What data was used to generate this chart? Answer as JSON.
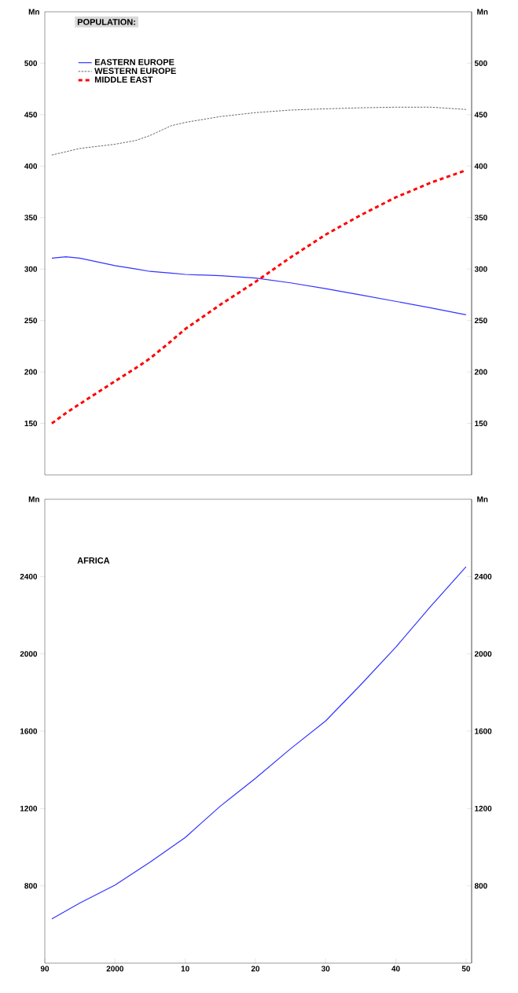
{
  "chart_data": [
    {
      "type": "line",
      "title": "POPULATION:",
      "ylabel": "Mn",
      "y2label": "Mn",
      "x": [
        1991,
        1993,
        1995,
        2000,
        2003,
        2005,
        2008,
        2010,
        2015,
        2020,
        2025,
        2030,
        2035,
        2040,
        2045,
        2050
      ],
      "series": [
        {
          "name": "EASTERN EUROPE",
          "color": "#3333ff",
          "line_style": "solid",
          "values": [
            310.6,
            311.9,
            310.6,
            303.3,
            300,
            297.7,
            296,
            294.8,
            293.5,
            291.3,
            286.6,
            280.9,
            274.9,
            268.6,
            262.3,
            255.6
          ]
        },
        {
          "name": "WESTERN EUROPE",
          "color": "#555555",
          "line_style": "dashed",
          "values": [
            410.8,
            414,
            417.2,
            421.3,
            425,
            429.8,
            439.3,
            442.5,
            448.2,
            452,
            454.5,
            455.7,
            456.7,
            457.3,
            457.3,
            455.1
          ]
        },
        {
          "name": "MIDDLE EAST",
          "color": "#ff0000",
          "line_style": "dotted",
          "values": [
            150,
            160,
            169,
            191,
            204,
            213.2,
            230,
            241.7,
            265.4,
            287.5,
            311.3,
            333.4,
            352.4,
            369.7,
            384,
            396
          ]
        }
      ],
      "xlim": [
        1990,
        2050.8
      ],
      "ylim": [
        100,
        550
      ],
      "yticks": [
        150,
        200,
        250,
        300,
        350,
        400,
        450,
        500
      ],
      "y2lim": [
        100,
        550
      ],
      "y2ticks": [
        150,
        200,
        250,
        300,
        350,
        400,
        450,
        500
      ],
      "legend": "top left",
      "tick_labels": "y"
    },
    {
      "type": "line",
      "title": "AFRICA",
      "ylabel": "Mn",
      "y2label": "Mn",
      "x": [
        1991,
        1995,
        2000,
        2005,
        2010,
        2015,
        2020,
        2025,
        2030,
        2035,
        2040,
        2045,
        2050
      ],
      "series": [
        {
          "color": "#3333ff",
          "line_style": "solid",
          "values": [
            629,
            711,
            804,
            923,
            1050,
            1212,
            1356,
            1509,
            1653,
            1840,
            2035,
            2247,
            2451
          ]
        }
      ],
      "xlim": [
        1990,
        2050.8
      ],
      "xticks": [
        {
          "value": 1990,
          "label": "90"
        },
        2000,
        {
          "value": 2010,
          "label": "10"
        },
        {
          "value": 2020,
          "label": "20"
        },
        {
          "value": 2030,
          "label": "30"
        },
        {
          "value": 2040,
          "label": "40"
        },
        {
          "value": 2050,
          "label": "50"
        }
      ],
      "ylim": [
        400,
        2800
      ],
      "yticks": [
        800,
        1200,
        1600,
        2000,
        2400
      ],
      "y2lim": [
        400,
        2800
      ],
      "y2ticks": [
        800,
        1200,
        1600,
        2000,
        2400
      ]
    }
  ]
}
